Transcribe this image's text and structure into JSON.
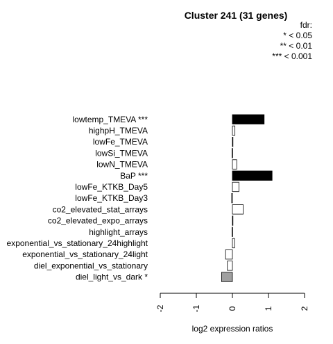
{
  "chart_data": {
    "type": "bar",
    "orientation": "horizontal",
    "title": "Cluster 241 (31 genes)",
    "xlabel": "log2 expression ratios",
    "xlim": [
      -2,
      2
    ],
    "xticks": [
      "-2",
      "-1",
      "0",
      "1",
      "2"
    ],
    "legend": {
      "title": "fdr:",
      "entries": [
        "* < 0.05",
        "** < 0.01",
        "*** < 0.001"
      ],
      "position": "top-right"
    },
    "categories": [
      "lowtemp_TMEVA ***",
      "highpH_TMEVA",
      "lowFe_TMEVA",
      "lowSi_TMEVA",
      "lowN_TMEVA",
      "BaP ***",
      "lowFe_KTKB_Day5",
      "lowFe_KTKB_Day3",
      "co2_elevated_stat_arrays",
      "co2_elevated_expo_arrays",
      "highlight_arrays",
      "exponential_vs_stationary_24highlight",
      "exponential_vs_stationary_24light",
      "diel_exponential_vs_stationary",
      "diel_light_vs_dark *"
    ],
    "values": [
      0.88,
      0.07,
      0.01,
      -0.01,
      0.12,
      1.1,
      0.18,
      -0.02,
      0.3,
      0.0,
      -0.01,
      0.06,
      -0.19,
      -0.14,
      -0.3
    ],
    "fill_colors": [
      "#000000",
      "#ffffff",
      "#ffffff",
      "#ffffff",
      "#ffffff",
      "#000000",
      "#ffffff",
      "#ffffff",
      "#ffffff",
      "#ffffff",
      "#ffffff",
      "#ffffff",
      "#ffffff",
      "#ffffff",
      "#a0a0a0"
    ]
  }
}
